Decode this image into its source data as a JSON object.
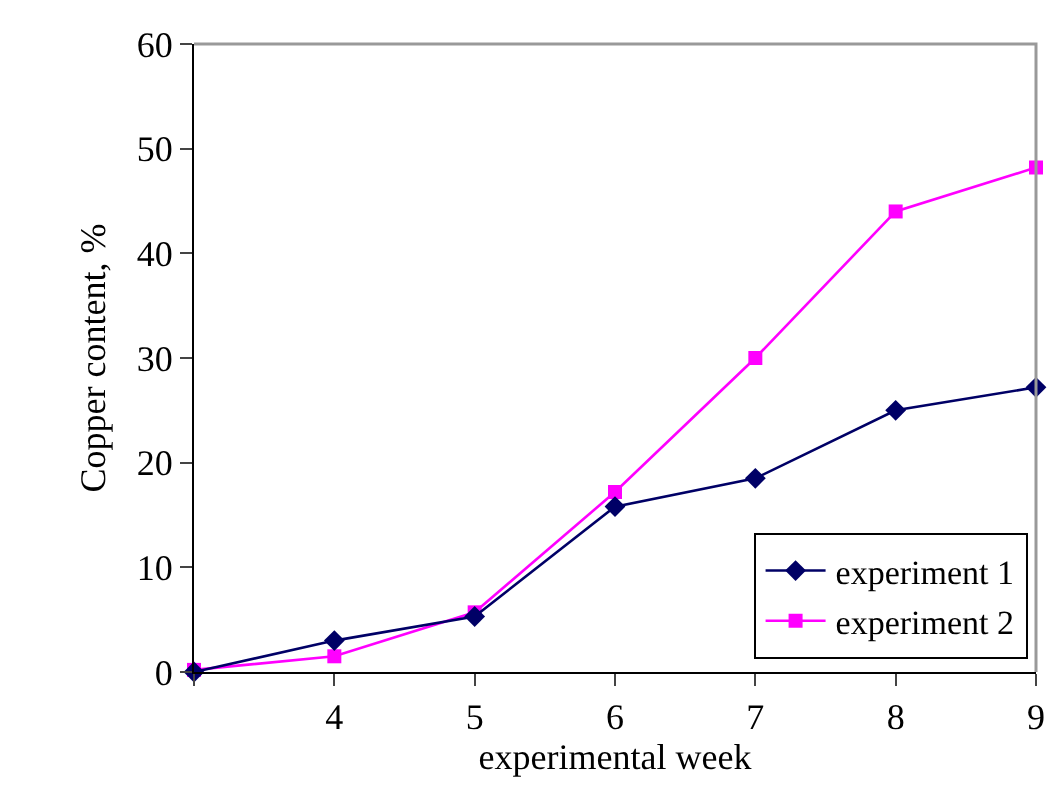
{
  "chart_data": {
    "type": "line",
    "xlabel": "experimental week",
    "ylabel": "Copper content, %",
    "x": [
      3,
      4,
      5,
      6,
      7,
      8,
      9
    ],
    "series": [
      {
        "name": "experiment 1",
        "color": "#000066",
        "marker": "diamond",
        "values": [
          0,
          3,
          5.3,
          15.8,
          18.5,
          25,
          27.2
        ]
      },
      {
        "name": "experiment 2",
        "color": "#ff00ff",
        "marker": "square",
        "values": [
          0.2,
          1.5,
          5.7,
          17.2,
          30,
          44,
          48.2
        ]
      }
    ],
    "xlim": [
      3,
      9
    ],
    "xticks": [
      {
        "value": 3,
        "label": null
      },
      4,
      5,
      6,
      7,
      8,
      9
    ],
    "ylim": [
      0,
      60
    ],
    "yticks": [
      0,
      10,
      20,
      30,
      40,
      50,
      60
    ],
    "grid": false,
    "legend": "bottom right",
    "line_style": "solid"
  }
}
